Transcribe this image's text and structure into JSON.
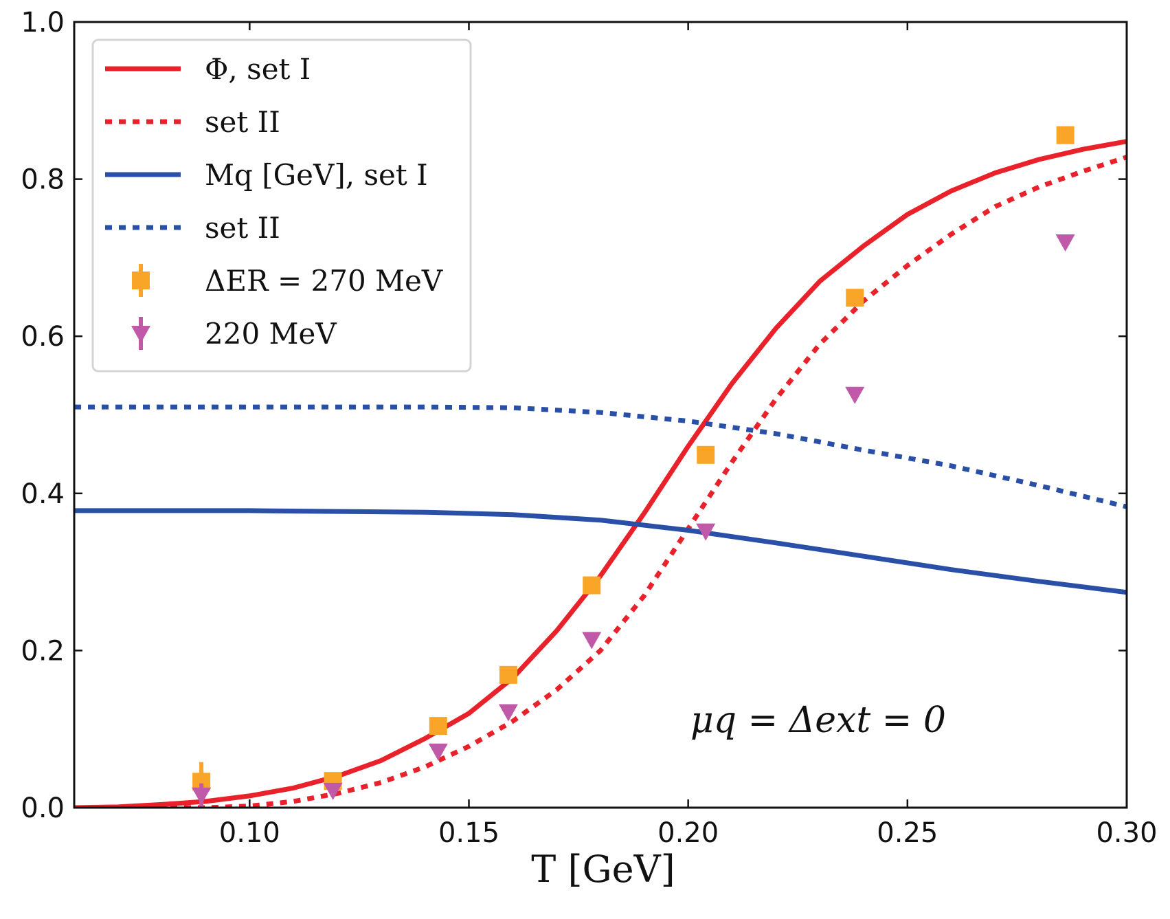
{
  "chart_data": {
    "type": "line",
    "title": "",
    "xlabel": "T [GeV]",
    "ylabel": "",
    "xlim": [
      0.06,
      0.3
    ],
    "ylim": [
      0.0,
      1.0
    ],
    "x_ticks": [
      0.1,
      0.15,
      0.2,
      0.25,
      0.3
    ],
    "x_tick_labels": [
      "0.10",
      "0.15",
      "0.20",
      "0.25",
      "0.30"
    ],
    "y_ticks": [
      0.0,
      0.2,
      0.4,
      0.6,
      0.8,
      1.0
    ],
    "y_tick_labels": [
      "0.0",
      "0.2",
      "0.4",
      "0.6",
      "0.8",
      "1.0"
    ],
    "annotation": "μq = Δext = 0",
    "legend_position": "upper-left",
    "series": [
      {
        "name": "Φ, set I",
        "kind": "line",
        "style": "solid",
        "color": "#e8212a",
        "x": [
          0.06,
          0.07,
          0.08,
          0.09,
          0.1,
          0.11,
          0.12,
          0.13,
          0.14,
          0.15,
          0.16,
          0.17,
          0.18,
          0.19,
          0.2,
          0.21,
          0.22,
          0.23,
          0.24,
          0.25,
          0.26,
          0.27,
          0.28,
          0.29,
          0.3
        ],
        "y": [
          0.0,
          0.001,
          0.004,
          0.008,
          0.015,
          0.025,
          0.04,
          0.06,
          0.088,
          0.12,
          0.165,
          0.225,
          0.295,
          0.375,
          0.46,
          0.54,
          0.61,
          0.67,
          0.715,
          0.755,
          0.785,
          0.808,
          0.825,
          0.838,
          0.848
        ]
      },
      {
        "name": "set II",
        "kind": "line",
        "style": "dotted",
        "color": "#e8212a",
        "x": [
          0.06,
          0.07,
          0.08,
          0.09,
          0.1,
          0.11,
          0.12,
          0.13,
          0.14,
          0.15,
          0.16,
          0.17,
          0.18,
          0.19,
          0.2,
          0.21,
          0.22,
          0.23,
          0.24,
          0.25,
          0.26,
          0.27,
          0.28,
          0.29,
          0.3
        ],
        "y": [
          0.0,
          0.0,
          0.0,
          0.0,
          0.002,
          0.008,
          0.018,
          0.032,
          0.052,
          0.078,
          0.11,
          0.15,
          0.2,
          0.27,
          0.355,
          0.44,
          0.52,
          0.59,
          0.645,
          0.69,
          0.73,
          0.765,
          0.79,
          0.81,
          0.828
        ]
      },
      {
        "name": "Mq [GeV], set I",
        "kind": "line",
        "style": "solid",
        "color": "#2a4fa6",
        "x": [
          0.06,
          0.08,
          0.1,
          0.12,
          0.14,
          0.16,
          0.18,
          0.2,
          0.22,
          0.24,
          0.26,
          0.28,
          0.3
        ],
        "y": [
          0.378,
          0.378,
          0.378,
          0.377,
          0.376,
          0.373,
          0.366,
          0.353,
          0.337,
          0.32,
          0.303,
          0.288,
          0.274
        ]
      },
      {
        "name": "set II",
        "kind": "line",
        "style": "dotted",
        "color": "#2a4fa6",
        "x": [
          0.06,
          0.08,
          0.1,
          0.12,
          0.14,
          0.16,
          0.18,
          0.2,
          0.22,
          0.24,
          0.26,
          0.28,
          0.3
        ],
        "y": [
          0.51,
          0.51,
          0.51,
          0.51,
          0.51,
          0.509,
          0.503,
          0.492,
          0.476,
          0.455,
          0.435,
          0.41,
          0.383
        ]
      },
      {
        "name": "ΔER = 270 MeV",
        "kind": "scatter",
        "marker": "square",
        "color": "#f9a528",
        "x": [
          0.089,
          0.119,
          0.143,
          0.159,
          0.178,
          0.204,
          0.238,
          0.286
        ],
        "y": [
          0.033,
          0.034,
          0.104,
          0.169,
          0.283,
          0.449,
          0.649,
          0.856
        ],
        "yerr": [
          0.025,
          0.01,
          0.006,
          0.006,
          0.006,
          0.006,
          0.006,
          0.006
        ]
      },
      {
        "name": "220 MeV",
        "kind": "scatter",
        "marker": "triangle-down",
        "color": "#c05aa8",
        "x": [
          0.089,
          0.119,
          0.143,
          0.159,
          0.178,
          0.204,
          0.238,
          0.286
        ],
        "y": [
          0.016,
          0.022,
          0.072,
          0.122,
          0.214,
          0.352,
          0.526,
          0.72
        ],
        "yerr": [
          0.015,
          0.008,
          0.005,
          0.005,
          0.005,
          0.005,
          0.005,
          0.005
        ]
      }
    ]
  }
}
